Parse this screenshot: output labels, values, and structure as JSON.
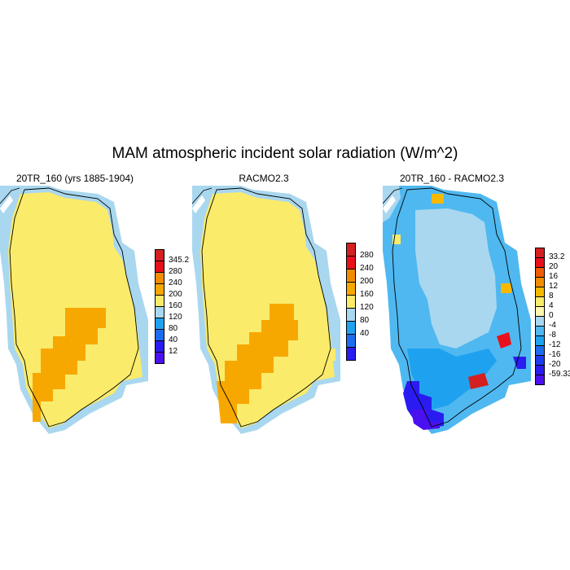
{
  "title": "MAM atmospheric incident solar radiation (W/m^2)",
  "panels": [
    {
      "title": "20TR_160 (yrs 1885-1904)",
      "colorbar": {
        "labels": [
          "345.2",
          "280",
          "240",
          "200",
          "160",
          "120",
          "80",
          "40",
          "12"
        ],
        "colors": [
          "#d42020",
          "#e8101a",
          "#f28c00",
          "#f7a800",
          "#fbeb6b",
          "#a9d7ef",
          "#1ea2f0",
          "#1c6cf0",
          "#2a1cf0",
          "#4b10f0"
        ]
      },
      "regions": {
        "dominant": "#fbeb6b",
        "south": "#f7a800"
      }
    },
    {
      "title": "RACMO2.3",
      "colorbar": {
        "labels": [
          "280",
          "240",
          "200",
          "160",
          "120",
          "80",
          "40"
        ],
        "colors": [
          "#d42020",
          "#e8101a",
          "#f28c00",
          "#f7a800",
          "#fbeb6b",
          "#a9d7ef",
          "#1ea2f0",
          "#1c6cf0",
          "#2a1cf0"
        ]
      },
      "regions": {
        "dominant": "#fbeb6b",
        "south": "#f7a800"
      }
    },
    {
      "title": "20TR_160 - RACMO2.3",
      "colorbar": {
        "labels": [
          "33.2",
          "20",
          "16",
          "12",
          "8",
          "4",
          "0",
          "-4",
          "-8",
          "-12",
          "-16",
          "-20",
          "-59.33"
        ],
        "colors": [
          "#d42020",
          "#e8101a",
          "#f25c00",
          "#f28c00",
          "#f7b800",
          "#fbeb6b",
          "#fff6b0",
          "#a9d7ef",
          "#4fb8f0",
          "#1ea2f0",
          "#1c6cf0",
          "#1c3cf0",
          "#2a1cf0",
          "#4b10f0"
        ]
      },
      "regions": {
        "dominant": "#a9d7ef",
        "ring": "#4fb8f0",
        "south": "#2a1cf0",
        "east": "#e8101a"
      }
    }
  ]
}
